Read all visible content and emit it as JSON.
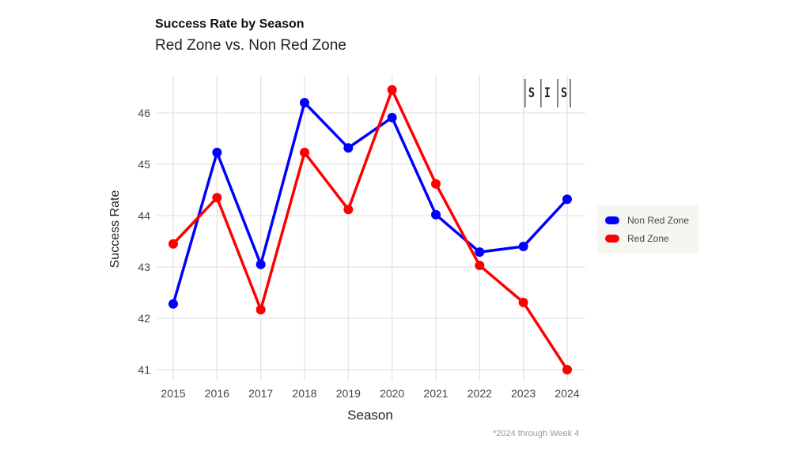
{
  "chart_data": {
    "type": "line",
    "title": "Success Rate by Season",
    "subtitle": "Red Zone vs. Non Red Zone",
    "xlabel": "Season",
    "ylabel": "Success Rate",
    "x": [
      2015,
      2016,
      2017,
      2018,
      2019,
      2020,
      2021,
      2022,
      2023,
      2024
    ],
    "yticks": [
      41,
      42,
      43,
      44,
      45,
      46
    ],
    "ylim": [
      40.8,
      46.75
    ],
    "grid": true,
    "legend_position": "right",
    "series": [
      {
        "name": "Non Red Zone",
        "color": "#0000ff",
        "values": [
          42.28,
          45.23,
          43.05,
          46.2,
          45.32,
          45.91,
          44.02,
          43.29,
          43.4,
          44.32
        ]
      },
      {
        "name": "Red Zone",
        "color": "#ff0000",
        "values": [
          43.45,
          44.35,
          42.17,
          45.23,
          44.12,
          46.45,
          44.62,
          43.03,
          42.31,
          41.0
        ]
      }
    ],
    "note": "*2024 through Week 4",
    "logo_text": "SIS"
  }
}
